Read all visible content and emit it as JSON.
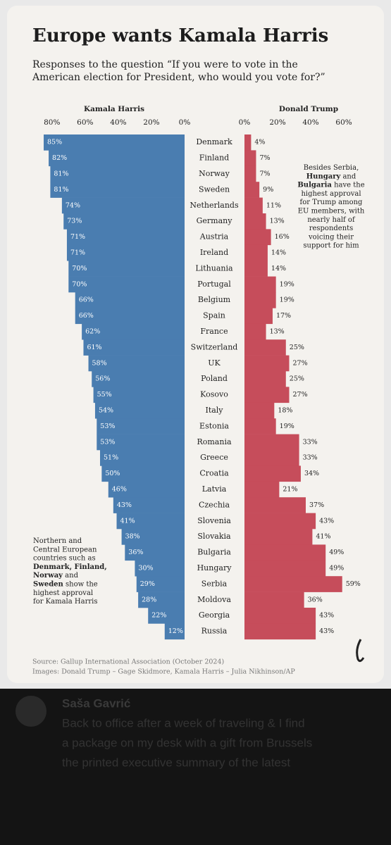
{
  "chart_data": {
    "type": "butterfly-bar",
    "title": "Europe wants Kamala Harris",
    "subtitle": [
      "Responses to the question “If you were to vote in the",
      "American election for President, who would you vote for?”"
    ],
    "categories": [
      "Denmark",
      "Finland",
      "Norway",
      "Sweden",
      "Netherlands",
      "Germany",
      "Austria",
      "Ireland",
      "Lithuania",
      "Portugal",
      "Belgium",
      "Spain",
      "France",
      "Switzerland",
      "UK",
      "Poland",
      "Kosovo",
      "Italy",
      "Estonia",
      "Romania",
      "Greece",
      "Croatia",
      "Latvia",
      "Czechia",
      "Slovenia",
      "Slovakia",
      "Bulgaria",
      "Hungary",
      "Serbia",
      "Moldova",
      "Georgia",
      "Russia"
    ],
    "series": [
      {
        "name": "Kamala Harris",
        "color": "#4a7db0",
        "side": "left",
        "values": [
          85,
          82,
          81,
          81,
          74,
          73,
          71,
          71,
          70,
          70,
          66,
          66,
          62,
          61,
          58,
          56,
          55,
          54,
          53,
          53,
          51,
          50,
          46,
          43,
          41,
          38,
          36,
          30,
          29,
          28,
          22,
          12
        ],
        "value_labels": [
          "85%",
          "82%",
          "81%",
          "81%",
          "74%",
          "73%",
          "71%",
          "71%",
          "70%",
          "70%",
          "66%",
          "66%",
          "62%",
          "61%",
          "58%",
          "56%",
          "55%",
          "54%",
          "53%",
          "53%",
          "51%",
          "50%",
          "46%",
          "43%",
          "41%",
          "38%",
          "36%",
          "30%",
          "29%",
          "28%",
          "22%",
          "12%"
        ],
        "xlim": [
          0,
          85
        ],
        "xticks": [
          {
            "value": 80,
            "label": "80%"
          },
          {
            "value": 60,
            "label": "60%"
          },
          {
            "value": 40,
            "label": "40%"
          },
          {
            "value": 20,
            "label": "20%"
          },
          {
            "value": 0,
            "label": "0%"
          }
        ]
      },
      {
        "name": "Donald Trump",
        "color": "#c64d5b",
        "side": "right",
        "values": [
          4,
          7,
          7,
          9,
          11,
          13,
          16,
          14,
          14,
          19,
          19,
          17,
          13,
          25,
          27,
          25,
          27,
          18,
          19,
          33,
          33,
          34,
          21,
          37,
          43,
          41,
          49,
          49,
          59,
          36,
          43,
          43
        ],
        "value_labels": [
          "4%",
          "7%",
          "7%",
          "9%",
          "11%",
          "13%",
          "16%",
          "14%",
          "14%",
          "19%",
          "19%",
          "17%",
          "13%",
          "25%",
          "27%",
          "25%",
          "27%",
          "18%",
          "19%",
          "33%",
          "33%",
          "34%",
          "21%",
          "37%",
          "43%",
          "41%",
          "49%",
          "49%",
          "59%",
          "36%",
          "43%",
          "43%"
        ],
        "xlim": [
          0,
          74
        ],
        "xticks": [
          {
            "value": 0,
            "label": "0%"
          },
          {
            "value": 20,
            "label": "20%"
          },
          {
            "value": 40,
            "label": "40%"
          },
          {
            "value": 60,
            "label": "60%"
          }
        ]
      }
    ],
    "annotations": [
      {
        "side": "right",
        "lines": [
          [
            {
              "text": "Besides Serbia,"
            }
          ],
          [
            {
              "text": "Hungary",
              "bold": true
            },
            {
              "text": " and"
            }
          ],
          [
            {
              "text": "Bulgaria",
              "bold": true
            },
            {
              "text": " have the"
            }
          ],
          [
            {
              "text": "highest approval"
            }
          ],
          [
            {
              "text": "for Trump among"
            }
          ],
          [
            {
              "text": "EU members, with"
            }
          ],
          [
            {
              "text": "nearly half of"
            }
          ],
          [
            {
              "text": "respondents"
            }
          ],
          [
            {
              "text": "voicing their"
            }
          ],
          [
            {
              "text": "support for him"
            }
          ]
        ]
      },
      {
        "side": "left",
        "lines": [
          [
            {
              "text": "Northern and"
            }
          ],
          [
            {
              "text": "Central European"
            }
          ],
          [
            {
              "text": "countries such as"
            }
          ],
          [
            {
              "text": "Denmark, Finland,",
              "bold": true
            }
          ],
          [
            {
              "text": "Norway",
              "bold": true
            },
            {
              "text": " and"
            }
          ],
          [
            {
              "text": "Sweden",
              "bold": true
            },
            {
              "text": " show the"
            }
          ],
          [
            {
              "text": "highest approval"
            }
          ],
          [
            {
              "text": "for Kamala Harris"
            }
          ]
        ]
      }
    ],
    "source": [
      "Source: Gallup International Association (October 2024)",
      "Images: Donald Trump – Gage Skidmore, Kamala Harris – Julia Nikhinson/AP"
    ]
  },
  "post": {
    "author": "Saša Gavrić",
    "lines": [
      "Back to office after a week of traveling & I find",
      "a package on my desk with a gift from Brussels",
      "the printed executive summary of the latest"
    ]
  }
}
